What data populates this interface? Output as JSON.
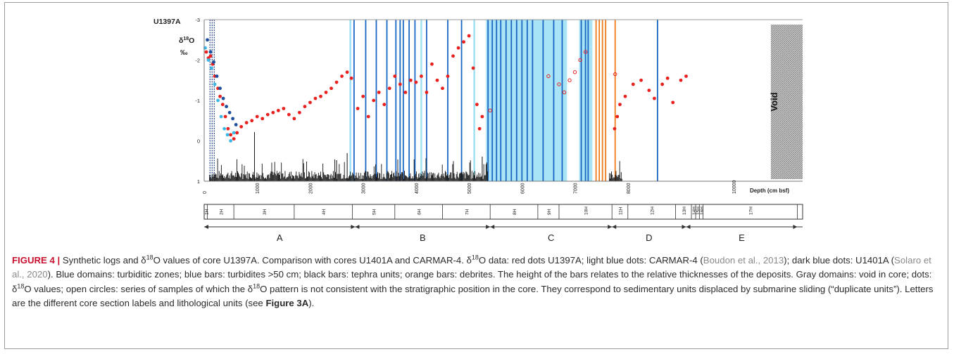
{
  "chart_data": {
    "type": "scatter",
    "core_label": "U1397A",
    "ylabel": "δ18O ‰",
    "ylabel_parts": {
      "delta": "δ",
      "sup": "18",
      "iso": "O",
      "unit": "‰"
    },
    "xlabel": "Depth (cm bsf)",
    "xlim": [
      0,
      11300
    ],
    "ylim": [
      1,
      -3
    ],
    "y_ticks": [
      "-3",
      "-2",
      "-1",
      "0",
      "1"
    ],
    "x_ticks": [
      "0",
      "1000",
      "2000",
      "3000",
      "4000",
      "5000",
      "6000",
      "7000",
      "8000",
      "10000"
    ],
    "void_label": "Void",
    "void_range": [
      10700,
      11300
    ],
    "blue_domains": [
      [
        5320,
        6850
      ],
      [
        7080,
        7330
      ]
    ],
    "light_blue_bars": [
      2760,
      4100,
      5100
    ],
    "blue_bars": [
      2830,
      3050,
      3250,
      3450,
      3620,
      3700,
      3760,
      3870,
      3980,
      4200,
      4600,
      4860,
      5360,
      5440,
      5520,
      5600,
      5700,
      5800,
      5900,
      6000,
      6100,
      6200,
      6400,
      6600,
      6760,
      7120,
      7200,
      7250,
      8560
    ],
    "orange_bars": [
      7400,
      7460,
      7520,
      7580,
      7760
    ],
    "core_sections": [
      "1H",
      "2H",
      "3H",
      "4H",
      "5H",
      "6H",
      "7H",
      "8H",
      "9H",
      "10H",
      "11H",
      "12H",
      "13H",
      "14H",
      "15H",
      "16H",
      "17H"
    ],
    "units": [
      "A",
      "B",
      "C",
      "D",
      "E"
    ],
    "unit_ranges": [
      [
        0,
        2850
      ],
      [
        2850,
        5400
      ],
      [
        5400,
        7700
      ],
      [
        7700,
        9100
      ],
      [
        9100,
        11200
      ]
    ],
    "series": [
      {
        "name": "U1397A",
        "color": "#e8201e",
        "points": [
          [
            40,
            -2.2
          ],
          [
            80,
            -2.05
          ],
          [
            120,
            -2.1
          ],
          [
            160,
            -1.9
          ],
          [
            200,
            -1.6
          ],
          [
            260,
            -1.3
          ],
          [
            300,
            -1.1
          ],
          [
            350,
            -0.9
          ],
          [
            400,
            -0.6
          ],
          [
            450,
            -0.3
          ],
          [
            500,
            -0.15
          ],
          [
            560,
            -0.05
          ],
          [
            620,
            -0.2
          ],
          [
            700,
            -0.35
          ],
          [
            800,
            -0.45
          ],
          [
            900,
            -0.5
          ],
          [
            1000,
            -0.6
          ],
          [
            1100,
            -0.55
          ],
          [
            1200,
            -0.65
          ],
          [
            1300,
            -0.7
          ],
          [
            1400,
            -0.75
          ],
          [
            1500,
            -0.8
          ],
          [
            1600,
            -0.65
          ],
          [
            1700,
            -0.55
          ],
          [
            1800,
            -0.7
          ],
          [
            1900,
            -0.85
          ],
          [
            2000,
            -0.95
          ],
          [
            2100,
            -1.05
          ],
          [
            2200,
            -1.1
          ],
          [
            2300,
            -1.2
          ],
          [
            2400,
            -1.3
          ],
          [
            2500,
            -1.45
          ],
          [
            2600,
            -1.6
          ],
          [
            2700,
            -1.7
          ],
          [
            2780,
            -1.55
          ],
          [
            2900,
            -0.8
          ],
          [
            3000,
            -1.1
          ],
          [
            3100,
            -0.6
          ],
          [
            3200,
            -1.0
          ],
          [
            3300,
            -1.2
          ],
          [
            3400,
            -0.9
          ],
          [
            3500,
            -1.3
          ],
          [
            3600,
            -1.6
          ],
          [
            3700,
            -1.4
          ],
          [
            3800,
            -1.2
          ],
          [
            3900,
            -1.5
          ],
          [
            4000,
            -1.45
          ],
          [
            4100,
            -1.6
          ],
          [
            4200,
            -1.2
          ],
          [
            4300,
            -1.9
          ],
          [
            4400,
            -1.5
          ],
          [
            4500,
            -1.3
          ],
          [
            4600,
            -1.6
          ],
          [
            4700,
            -2.1
          ],
          [
            4800,
            -2.3
          ],
          [
            4900,
            -2.45
          ],
          [
            5000,
            -2.6
          ],
          [
            5080,
            -1.8
          ],
          [
            5150,
            -0.9
          ],
          [
            5200,
            -0.3
          ],
          [
            5250,
            -0.6
          ],
          [
            7750,
            -0.3
          ],
          [
            7800,
            -0.6
          ],
          [
            7850,
            -0.9
          ],
          [
            7950,
            -1.1
          ],
          [
            8100,
            -1.4
          ],
          [
            8250,
            -1.5
          ],
          [
            8400,
            -1.25
          ],
          [
            8500,
            -1.05
          ],
          [
            8650,
            -1.4
          ],
          [
            8750,
            -1.55
          ],
          [
            8850,
            -0.95
          ],
          [
            9000,
            -1.5
          ],
          [
            9100,
            -1.6
          ]
        ]
      },
      {
        "name": "CARMAR-4",
        "color": "#3db8e6",
        "points": [
          [
            20,
            -2.3
          ],
          [
            80,
            -2.0
          ],
          [
            140,
            -1.8
          ],
          [
            200,
            -1.4
          ],
          [
            260,
            -1.0
          ],
          [
            320,
            -0.6
          ],
          [
            380,
            -0.3
          ],
          [
            440,
            -0.15
          ],
          [
            500,
            -0.0
          ],
          [
            560,
            -0.2
          ]
        ]
      },
      {
        "name": "U1401A",
        "color": "#1d4f9c",
        "points": [
          [
            60,
            -2.5
          ],
          [
            120,
            -2.2
          ],
          [
            180,
            -1.95
          ],
          [
            240,
            -1.6
          ],
          [
            300,
            -1.3
          ],
          [
            360,
            -1.05
          ],
          [
            420,
            -0.85
          ],
          [
            480,
            -0.7
          ],
          [
            540,
            -0.55
          ],
          [
            600,
            -0.4
          ]
        ]
      },
      {
        "name": "duplicate units",
        "color": "#e8201e",
        "open": true,
        "points": [
          [
            5400,
            -0.75
          ],
          [
            6500,
            -1.6
          ],
          [
            6700,
            -1.4
          ],
          [
            6800,
            -1.2
          ],
          [
            6900,
            -1.5
          ],
          [
            7000,
            -1.7
          ],
          [
            7100,
            -2.0
          ],
          [
            7200,
            -2.2
          ],
          [
            7760,
            -1.65
          ]
        ]
      }
    ]
  },
  "caption": {
    "lead": "FIGURE 4 |",
    "p1": " Synthetic logs and δ",
    "p1_sup": "18",
    "p2": "O values of core U1397A. Comparison with cores U1401A and CARMAR-4. δ",
    "p2_sup": "18",
    "p3": "O data: red dots U1397A; light blue dots: CARMAR-4 (",
    "ref1": "Boudon et al., 2013",
    "p4": "); dark blue dots: U1401A (",
    "ref2": "Solaro et al., 2020",
    "p5": "). Blue domains: turbiditic zones; blue bars: turbidites >50 cm; black bars: tephra units; orange bars: debrites. The height of the bars relates to the relative thicknesses of the deposits. Gray domains: void in core; dots: δ",
    "p5_sup": "18",
    "p6": "O values; open circles: series of samples of which the δ",
    "p6_sup": "18",
    "p7": "O pattern is not consistent with the stratigraphic position in the core. They correspond to sedimentary units displaced by submarine sliding (“duplicate units”). Letters are the different core section labels and lithological units (see ",
    "bold_ref": "Figure 3A",
    "p8": ")."
  }
}
